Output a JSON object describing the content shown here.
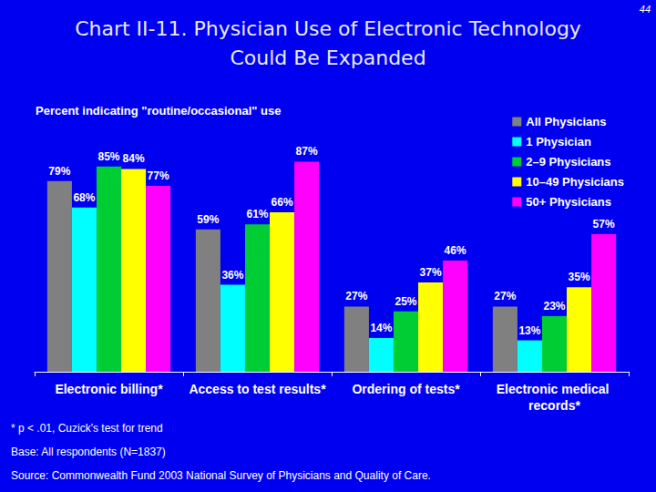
{
  "chart_data": {
    "type": "bar",
    "title": "Chart II-11. Physician Use of Electronic Technology\nCould Be Expanded",
    "subtitle": "Percent indicating \"routine/occasional\" use",
    "annotations": [
      "44",
      "* p < .01, Cuzick's test for trend",
      "Base: All respondents (N=1837)",
      "Source: Commonwealth Fund 2003 National Survey of Physicians and Quality of Care."
    ],
    "categories": [
      "Electronic billing*",
      "Access to test results*",
      "Ordering of tests*",
      "Electronic medical records*"
    ],
    "series": [
      {
        "name": "All Physicians",
        "color": "#808080",
        "values": [
          79,
          59,
          27,
          27
        ],
        "value_labels": [
          "79%",
          "59%",
          "27%",
          "27%"
        ]
      },
      {
        "name": "1 Physician",
        "color": "#00ffff",
        "values": [
          68,
          36,
          14,
          13
        ],
        "value_labels": [
          "68%",
          "36%",
          "14%",
          "13%"
        ]
      },
      {
        "name": "2–9 Physicians",
        "color": "#00cc33",
        "values": [
          85,
          61,
          25,
          23
        ],
        "value_labels": [
          "85%",
          "61%",
          "25%",
          "23%"
        ]
      },
      {
        "name": "10–49 Physicians",
        "color": "#ffff00",
        "values": [
          84,
          66,
          37,
          35
        ],
        "value_labels": [
          "84%",
          "66%",
          "37%",
          "35%"
        ]
      },
      {
        "name": "50+ Physicians",
        "color": "#ff00ff",
        "values": [
          77,
          87,
          46,
          57
        ],
        "value_labels": [
          "77%",
          "87%",
          "46%",
          "57%"
        ]
      }
    ],
    "ylim": [
      0,
      100
    ],
    "grid": false,
    "legend": "top-right",
    "data_labels": true,
    "tick_labels": "x"
  }
}
